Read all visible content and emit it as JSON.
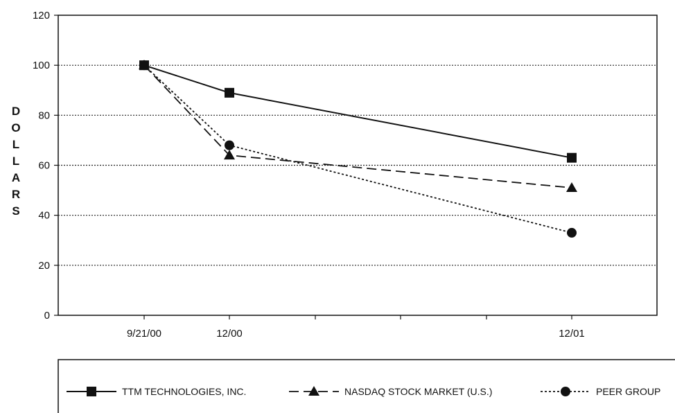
{
  "chart_data": {
    "type": "line",
    "title": "",
    "xlabel": "",
    "ylabel": "DOLLARS",
    "categories": [
      "9/21/00",
      "12/00",
      "12/01"
    ],
    "x_tick_labels": [
      "9/21/00",
      "12/00",
      "",
      "",
      "",
      "12/01"
    ],
    "ylim": [
      0,
      120
    ],
    "yticks": [
      0,
      20,
      40,
      60,
      80,
      100,
      120
    ],
    "grid": "horizontal dotted",
    "legend_position": "bottom",
    "series": [
      {
        "name": "TTM TECHNOLOGIES, INC.",
        "line_style": "solid",
        "marker": "square",
        "values": [
          100,
          89,
          63
        ]
      },
      {
        "name": "NASDAQ STOCK MARKET (U.S.)",
        "line_style": "dashed",
        "marker": "triangle",
        "values": [
          100,
          64,
          51
        ]
      },
      {
        "name": "PEER GROUP",
        "line_style": "dotted",
        "marker": "circle",
        "values": [
          100,
          68,
          33
        ]
      }
    ]
  }
}
